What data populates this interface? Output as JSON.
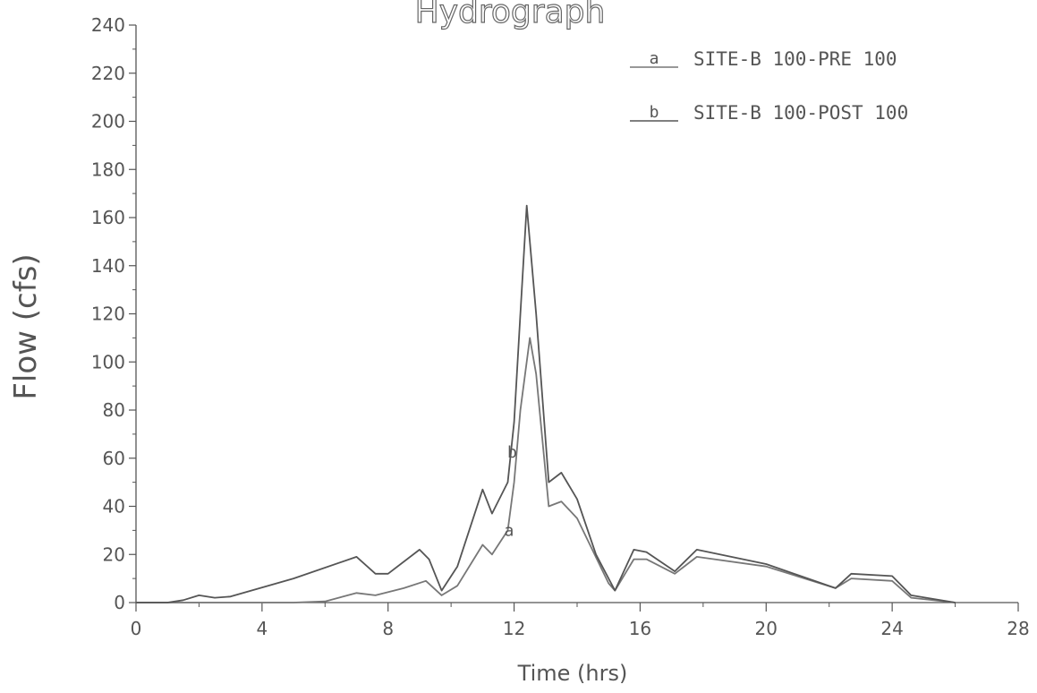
{
  "chart_data": {
    "type": "line",
    "title": "Hydrograph",
    "xlabel": "Time (hrs)",
    "ylabel": "Flow (cfs)",
    "xlim": [
      0,
      28
    ],
    "ylim": [
      0,
      240
    ],
    "xticks": [
      0,
      4,
      8,
      12,
      16,
      20,
      24,
      28
    ],
    "yticks": [
      0,
      20,
      40,
      60,
      80,
      100,
      120,
      140,
      160,
      180,
      200,
      220,
      240
    ],
    "grid": false,
    "legend_position": "top-right",
    "series": [
      {
        "key": "a",
        "name": "SITE-B 100-PRE 100",
        "color": "#777777",
        "marker_at": 11.8,
        "points": [
          [
            0,
            0
          ],
          [
            1.5,
            0
          ],
          [
            4,
            0
          ],
          [
            5,
            0
          ],
          [
            6,
            0.5
          ],
          [
            7,
            4
          ],
          [
            7.6,
            3
          ],
          [
            8.5,
            6
          ],
          [
            9.2,
            9
          ],
          [
            9.7,
            3
          ],
          [
            10.2,
            7
          ],
          [
            11,
            24
          ],
          [
            11.3,
            20
          ],
          [
            11.8,
            30
          ],
          [
            12,
            50
          ],
          [
            12.2,
            80
          ],
          [
            12.5,
            110
          ],
          [
            12.7,
            95
          ],
          [
            13.1,
            40
          ],
          [
            13.5,
            42
          ],
          [
            14,
            35
          ],
          [
            15,
            8
          ],
          [
            15.2,
            5
          ],
          [
            15.8,
            18
          ],
          [
            16.2,
            18
          ],
          [
            17.1,
            12
          ],
          [
            17.8,
            19
          ],
          [
            20,
            15
          ],
          [
            22.2,
            6
          ],
          [
            22.7,
            10
          ],
          [
            24,
            9
          ],
          [
            24.6,
            2
          ],
          [
            26,
            0
          ]
        ]
      },
      {
        "key": "b",
        "name": "SITE-B 100-POST 100",
        "color": "#555555",
        "marker_at": 11.9,
        "points": [
          [
            0,
            0
          ],
          [
            1,
            0
          ],
          [
            1.5,
            1
          ],
          [
            2,
            3
          ],
          [
            2.5,
            2
          ],
          [
            3,
            2.5
          ],
          [
            5,
            10
          ],
          [
            7,
            19
          ],
          [
            7.6,
            12
          ],
          [
            8,
            12
          ],
          [
            9,
            22
          ],
          [
            9.3,
            18
          ],
          [
            9.7,
            5
          ],
          [
            10.2,
            15
          ],
          [
            11,
            47
          ],
          [
            11.3,
            37
          ],
          [
            11.8,
            50
          ],
          [
            12,
            75
          ],
          [
            12.2,
            120
          ],
          [
            12.4,
            165
          ],
          [
            12.7,
            120
          ],
          [
            13.1,
            50
          ],
          [
            13.5,
            54
          ],
          [
            14,
            43
          ],
          [
            14.6,
            20
          ],
          [
            15.2,
            5
          ],
          [
            15.8,
            22
          ],
          [
            16.2,
            21
          ],
          [
            17.1,
            13
          ],
          [
            17.8,
            22
          ],
          [
            20,
            16
          ],
          [
            22.2,
            6
          ],
          [
            22.7,
            12
          ],
          [
            24,
            11
          ],
          [
            24.6,
            3
          ],
          [
            26,
            0
          ]
        ]
      }
    ]
  }
}
